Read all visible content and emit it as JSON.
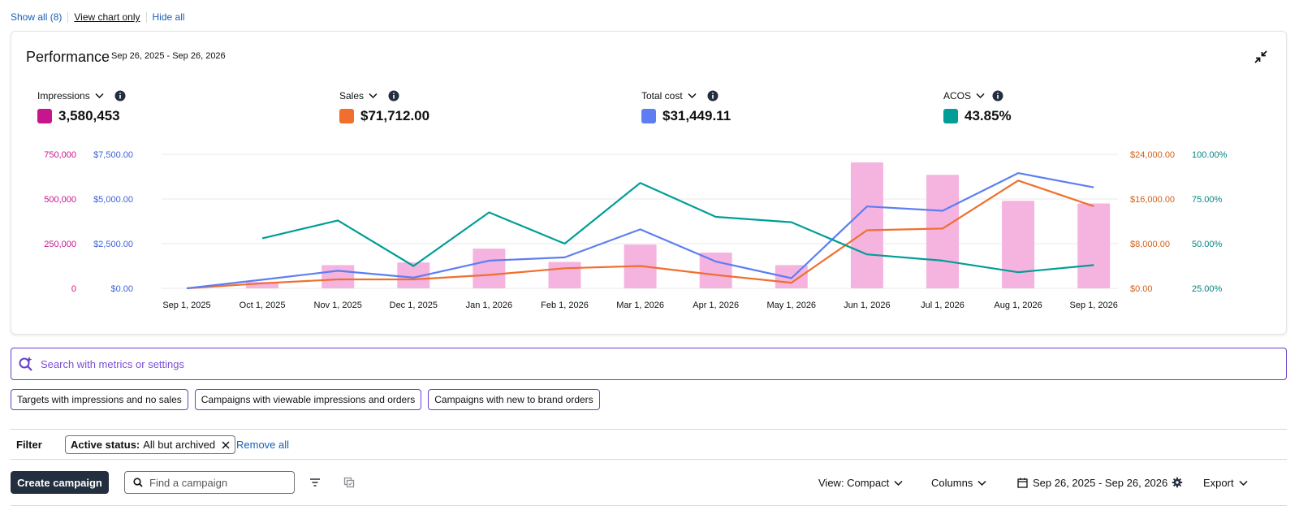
{
  "toplinks": {
    "show_all": "Show all (8)",
    "view_chart_only": "View chart only",
    "hide_all": "Hide all"
  },
  "performance": {
    "title": "Performance",
    "date_range": "Sep 26, 2025 - Sep 26, 2026",
    "metrics": [
      {
        "name": "Impressions",
        "value": "3,580,453",
        "color": "#c7168d"
      },
      {
        "name": "Sales",
        "value": "$71,712.00",
        "color": "#f06f2e"
      },
      {
        "name": "Total cost",
        "value": "$31,449.11",
        "color": "#5d7ef2"
      },
      {
        "name": "ACOS",
        "value": "43.85%",
        "color": "#009e96"
      }
    ]
  },
  "chart_data": {
    "type": "bar",
    "categories": [
      "Sep 1, 2025",
      "Oct 1, 2025",
      "Nov 1, 2025",
      "Dec 1, 2025",
      "Jan 1, 2026",
      "Feb 1, 2026",
      "Mar 1, 2026",
      "Apr 1, 2026",
      "May 1, 2026",
      "Jun 1, 2026",
      "Jul 1, 2026",
      "Aug 1, 2026",
      "Sep 1, 2026"
    ],
    "axes": {
      "impressions": {
        "ticks": [
          "0",
          "250,000",
          "500,000",
          "750,000"
        ],
        "ylim": [
          0,
          750000
        ],
        "color": "#c7168d"
      },
      "total_cost": {
        "ticks": [
          "$0.00",
          "$2,500.00",
          "$5,000.00",
          "$7,500.00"
        ],
        "ylim": [
          0,
          7500
        ],
        "color": "#3f63d8"
      },
      "sales": {
        "ticks": [
          "$0.00",
          "$8,000.00",
          "$16,000.00",
          "$24,000.00"
        ],
        "ylim": [
          0,
          24000
        ],
        "color": "#d45f1a"
      },
      "acos": {
        "ticks": [
          "25.00%",
          "50.00%",
          "75.00%",
          "100.00%"
        ],
        "ylim": [
          25,
          100
        ],
        "color": "#00877f"
      }
    },
    "series": [
      {
        "name": "Impressions",
        "kind": "bar",
        "axis": "impressions",
        "color": "#f5b3e0",
        "values": [
          0,
          35000,
          130000,
          145000,
          222000,
          148000,
          245000,
          200000,
          130000,
          705000,
          635000,
          490000,
          475000
        ]
      },
      {
        "name": "Sales",
        "kind": "line",
        "axis": "sales",
        "color": "#f06f2e",
        "values": [
          0,
          900,
          1600,
          1600,
          2400,
          3600,
          4000,
          2400,
          1000,
          10400,
          10700,
          19300,
          14700
        ]
      },
      {
        "name": "Total cost",
        "kind": "line",
        "axis": "total_cost",
        "color": "#5d7ef2",
        "values": [
          0,
          480,
          980,
          600,
          1550,
          1730,
          3300,
          1500,
          570,
          4580,
          4340,
          6450,
          5650
        ]
      },
      {
        "name": "ACOS",
        "kind": "line",
        "axis": "acos",
        "color": "#009e96",
        "values": [
          null,
          53,
          63,
          37.5,
          67.5,
          50,
          84,
          65,
          62,
          44,
          40.5,
          34,
          38
        ]
      }
    ]
  },
  "search": {
    "placeholder": "Search with metrics or settings"
  },
  "chips": [
    "Targets with impressions and no sales",
    "Campaigns with viewable impressions and orders",
    "Campaigns with new to brand orders"
  ],
  "filter": {
    "label": "Filter",
    "pill_key": "Active status:",
    "pill_value": "All but archived",
    "remove_all": "Remove all"
  },
  "toolbar": {
    "create_label": "Create campaign",
    "find_placeholder": "Find a campaign",
    "view_label": "View: Compact",
    "columns_label": "Columns",
    "date_label": "Sep 26, 2025 - Sep 26, 2026",
    "export_label": "Export"
  }
}
